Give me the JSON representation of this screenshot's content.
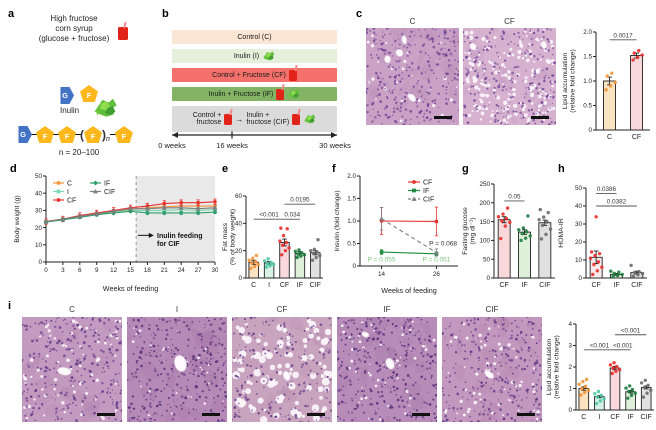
{
  "panel_a": {
    "label": "a",
    "hfcs_text": "High fructose\ncorn syrup\n(glucose + fructose)",
    "g": "G",
    "f": "F",
    "inulin": "Inulin",
    "chain_n": "n",
    "n_range": "n = 20–100"
  },
  "panel_b": {
    "label": "b",
    "rows": [
      {
        "text": "Control (C)",
        "color": "#FBE5D3"
      },
      {
        "text": "Inulin (I)",
        "color": "#E4F0DB"
      },
      {
        "text": "Control + Fructose (CF)",
        "color": "#F4716B"
      },
      {
        "text": "Inulin + Fructose (IF)",
        "color": "#83B465"
      },
      {
        "left": "Control +\nfructose",
        "arrow": "→",
        "right": "Inulin +\nfructose (CIF)",
        "color": "#DBDBDB"
      }
    ],
    "week0": "0 weeks",
    "week16": "16 weeks",
    "week30": "30 weeks"
  },
  "panel_c": {
    "label": "c"
  },
  "panel_d": {
    "label": "d"
  },
  "panel_e": {
    "label": "e"
  },
  "panel_f": {
    "label": "f"
  },
  "panel_g": {
    "label": "g"
  },
  "panel_h": {
    "label": "h"
  },
  "panel_i": {
    "label": "i"
  },
  "histology": [
    {
      "id": "c_C",
      "label": "C",
      "base": "#C9A2C5",
      "base2": "#B787B5",
      "nuclei": "#6C3F92",
      "n_count": 320,
      "vac_count": 28,
      "vac_r": [
        0.8,
        1.8
      ],
      "veins": 5,
      "vein_r": [
        2.5,
        5
      ],
      "seed": 11,
      "center_vein": false
    },
    {
      "id": "c_CF",
      "label": "CF",
      "base": "#D6B2D0",
      "base2": "#C193BD",
      "nuclei": "#6C3F92",
      "n_count": 260,
      "vac_count": 170,
      "vac_r": [
        0.9,
        2.2
      ],
      "veins": 3,
      "vein_r": [
        2.5,
        5
      ],
      "seed": 22,
      "center_vein": false
    },
    {
      "id": "i_C",
      "label": "C",
      "base": "#C49BC0",
      "base2": "#AE7FAD",
      "nuclei": "#5E3585",
      "n_count": 300,
      "vac_count": 70,
      "vac_r": [
        0.8,
        1.8
      ],
      "veins": 1,
      "vein_r": [
        6,
        9
      ],
      "seed": 33,
      "center_vein": true
    },
    {
      "id": "i_I",
      "label": "I",
      "base": "#B58AB6",
      "base2": "#9E6F9F",
      "nuclei": "#542E7A",
      "n_count": 340,
      "vac_count": 30,
      "vac_r": [
        0.7,
        1.4
      ],
      "veins": 1,
      "vein_r": [
        7,
        10
      ],
      "seed": 44,
      "center_vein": true
    },
    {
      "id": "i_CF",
      "label": "CF",
      "base": "#C9A4BF",
      "base2": "#B287AC",
      "nuclei": "#5E3585",
      "n_count": 220,
      "vac_count": 95,
      "vac_r": [
        1.5,
        4
      ],
      "veins": 1,
      "vein_r": [
        3,
        5
      ],
      "seed": 55,
      "center_vein": true
    },
    {
      "id": "i_IF",
      "label": "IF",
      "base": "#B78CB8",
      "base2": "#A073A2",
      "nuclei": "#542E7A",
      "n_count": 320,
      "vac_count": 55,
      "vac_r": [
        0.7,
        1.5
      ],
      "veins": 2,
      "vein_r": [
        3,
        6
      ],
      "seed": 66,
      "center_vein": true
    },
    {
      "id": "i_CIF",
      "label": "CIF",
      "base": "#C398BE",
      "base2": "#AB7CA9",
      "nuclei": "#5E3585",
      "n_count": 300,
      "vac_count": 60,
      "vac_r": [
        0.8,
        1.8
      ],
      "veins": 1,
      "vein_r": [
        4,
        6
      ],
      "seed": 77,
      "center_vein": true
    }
  ],
  "chart_data": [
    {
      "id": "c_lipid",
      "type": "bar",
      "ylabel": "Lipid accumulation\n(relative fold change)",
      "categories": [
        "C",
        "CF"
      ],
      "values": [
        1.0,
        1.52
      ],
      "errors": [
        0.08,
        0.05
      ],
      "ylim": [
        0,
        2
      ],
      "yticks": [
        "0",
        "0.5",
        "1.0",
        "1.5",
        "2.0"
      ],
      "bar_fills": [
        "#FAE3C1",
        "#F9D8DC"
      ],
      "dot_colors": [
        "#F5953C",
        "#E8312E"
      ],
      "dots": [
        [
          0.82,
          0.9,
          0.97,
          1.1,
          1.16
        ],
        [
          1.43,
          1.48,
          1.53,
          1.57,
          1.62
        ]
      ],
      "sig": [
        {
          "a": 0,
          "b": 1,
          "y": 1.84,
          "label": "0.0017"
        }
      ],
      "margins": {
        "l": 36,
        "t": 20,
        "r": 4,
        "b": 24
      }
    },
    {
      "id": "d_weight",
      "type": "line",
      "xlabel": "Weeks of feeding",
      "ylabel": "Body weight (g)",
      "xlim": [
        0,
        30
      ],
      "xticks": [
        "0",
        "3",
        "6",
        "9",
        "12",
        "15",
        "18",
        "21",
        "24",
        "27",
        "30"
      ],
      "ylim": [
        0,
        50
      ],
      "yticks": [
        "0",
        "10",
        "20",
        "30",
        "40",
        "50"
      ],
      "shade": [
        16,
        30
      ],
      "vline": 16,
      "x": [
        0,
        3,
        6,
        9,
        12,
        15,
        18,
        21,
        24,
        27,
        30
      ],
      "series": [
        {
          "name": "C",
          "color": "#F5953C",
          "marker": "circle",
          "values": [
            23.5,
            25,
            26.5,
            28,
            29.5,
            30.5,
            31.5,
            32,
            32.5,
            32.5,
            32.5
          ],
          "err": 0.8
        },
        {
          "name": "I",
          "color": "#7DD9B5",
          "marker": "square",
          "values": [
            23.2,
            24.5,
            26,
            27.5,
            29,
            30,
            30,
            30,
            30.5,
            30,
            30.5
          ],
          "err": 0.7
        },
        {
          "name": "CF",
          "color": "#E8312E",
          "marker": "circle",
          "values": [
            23.5,
            25,
            27,
            28.5,
            30,
            31.5,
            32.5,
            34,
            34.5,
            34.5,
            35
          ],
          "err": 1.6
        },
        {
          "name": "IF",
          "color": "#2E9E6B",
          "marker": "diamond",
          "values": [
            23.3,
            24.5,
            26,
            27.5,
            28.5,
            29.5,
            28.5,
            28.5,
            28.5,
            28.5,
            29
          ],
          "err": 0.8
        },
        {
          "name": "CIF",
          "color": "#7F7F7F",
          "marker": "triangle",
          "values": [
            23.4,
            25,
            26.5,
            28,
            29.5,
            31,
            31,
            31.5,
            31.5,
            31,
            31.5
          ],
          "err": 0.9
        }
      ],
      "legend_cols": [
        [
          0,
          1,
          2
        ],
        [
          3,
          4
        ]
      ],
      "annotation": {
        "text_lines": [
          "Inulin feeding",
          "for CIF"
        ],
        "x": 19.0,
        "y": 15.5,
        "arrow_from_x": 16.3,
        "arrow_to_x": 18.6
      },
      "margins": {
        "l": 34,
        "t": 6,
        "r": 3,
        "b": 32
      }
    },
    {
      "id": "e_fat",
      "type": "bar",
      "ylabel": "Fat mass\n(% of body weight)",
      "categories": [
        "C",
        "I",
        "CF",
        "IF",
        "CIF"
      ],
      "values": [
        11.5,
        11,
        26,
        18,
        18.5
      ],
      "errors": [
        1.5,
        1,
        2.5,
        1.2,
        1.5
      ],
      "ylim": [
        0,
        60
      ],
      "yticks": [
        "0",
        "20",
        "40",
        "60"
      ],
      "bar_fills": [
        "#FAE3C1",
        "#D8F3E6",
        "#F9D8DC",
        "#DFF0DA",
        "#E0E0E0"
      ],
      "dot_colors": [
        "#F5953C",
        "#4FC9A4",
        "#E8312E",
        "#1D7F3F",
        "#6E6E6E"
      ],
      "dots": [
        [
          7,
          8.5,
          10,
          11,
          12,
          13,
          14.5,
          16.5
        ],
        [
          8,
          9,
          10,
          10.5,
          11.5,
          12.5,
          14
        ],
        [
          17,
          20,
          22,
          24,
          26,
          27,
          31,
          36,
          36.5
        ],
        [
          15,
          16,
          17,
          17.5,
          18.5,
          19.5,
          20.5
        ],
        [
          13,
          15,
          16.5,
          18,
          19,
          20,
          21,
          28
        ]
      ],
      "sig": [
        {
          "a": 0,
          "b": 2,
          "y": 43,
          "label": "<0.001"
        },
        {
          "a": 2,
          "b": 3,
          "y": 43,
          "label": "0.034"
        },
        {
          "a": 2,
          "b": 4,
          "y": 54,
          "label": "0.0195"
        }
      ],
      "margins": {
        "l": 26,
        "t": 26,
        "r": 4,
        "b": 16
      }
    },
    {
      "id": "f_insulin",
      "type": "line",
      "xlabel": "Weeks of feeding",
      "ylabel": "Insulin (fold change)",
      "xlim": [
        0,
        1
      ],
      "xtick_pos": [
        0.22,
        0.78
      ],
      "xtick_labels": [
        "14",
        "26"
      ],
      "ylim": [
        0,
        2
      ],
      "yticks": [
        "0",
        "0.5",
        "1.0",
        "1.5",
        "2.0"
      ],
      "series": [
        {
          "name": "CF",
          "color": "#E8312E",
          "marker": "circle",
          "x": [
            0.22,
            0.78
          ],
          "values": [
            1.0,
            0.99
          ],
          "errs": [
            0.3,
            0.32
          ]
        },
        {
          "name": "IF",
          "color": "#1D8A3C",
          "marker": "square",
          "x": [
            0.22,
            0.78
          ],
          "values": [
            0.31,
            0.27
          ],
          "errs": [
            0.05,
            0.04
          ]
        },
        {
          "name": "CIF",
          "color": "#7F7F7F",
          "marker": "triangle",
          "dash": true,
          "x": [
            0.22,
            0.78
          ],
          "values": [
            1.05,
            0.3
          ],
          "errs": [
            0.25,
            0.08
          ]
        }
      ],
      "annotations": [
        {
          "x": 0.99,
          "y": 0.46,
          "text": "P = 0.068",
          "color": "#333333",
          "anchor": "end"
        },
        {
          "x": 0.22,
          "y": 0.1,
          "text": "P = 0.055",
          "color": "#7CC57C",
          "anchor": "middle"
        },
        {
          "x": 0.78,
          "y": 0.1,
          "text": "P = 0.051",
          "color": "#7CC57C",
          "anchor": "middle"
        }
      ],
      "legend": "tr",
      "margins": {
        "l": 28,
        "t": 6,
        "r": 2,
        "b": 30
      }
    },
    {
      "id": "g_glucose",
      "type": "bar",
      "ylabel": "Fasting glucose\n(mg dl⁻¹)",
      "categories": [
        "CF",
        "IF",
        "CIF"
      ],
      "values": [
        155,
        122,
        147
      ],
      "errors": [
        8,
        6,
        7
      ],
      "ylim": [
        0,
        250
      ],
      "yticks": [
        "0",
        "50",
        "100",
        "150",
        "200",
        "250"
      ],
      "bar_fills": [
        "#F9D8DC",
        "#DFF0DA",
        "#E0E0E0"
      ],
      "dot_colors": [
        "#E8312E",
        "#1D7F3F",
        "#6E6E6E"
      ],
      "dots": [
        [
          105,
          138,
          148,
          152,
          158,
          163,
          170,
          186
        ],
        [
          100,
          106,
          112,
          118,
          123,
          128,
          133,
          165
        ],
        [
          104,
          116,
          130,
          140,
          149,
          155,
          162,
          174,
          182
        ]
      ],
      "sig": [
        {
          "a": 0,
          "b": 1,
          "y": 205,
          "label": "0.05"
        }
      ],
      "margins": {
        "l": 34,
        "t": 14,
        "r": 2,
        "b": 16
      }
    },
    {
      "id": "h_homa",
      "type": "bar",
      "ylabel": "HOMA-IR",
      "categories": [
        "CF",
        "IF",
        "CIF"
      ],
      "values": [
        11.5,
        2,
        3
      ],
      "errors": [
        3.5,
        0.5,
        0.8
      ],
      "ylim": [
        0,
        50
      ],
      "yticks": [
        "0",
        "10",
        "20",
        "30",
        "40",
        "50"
      ],
      "bar_fills": [
        "#FBEAEA",
        "#DFF0DA",
        "#E0E0E0"
      ],
      "dot_colors": [
        "#E8312E",
        "#1D7F3F",
        "#6E6E6E"
      ],
      "dots": [
        [
          2,
          4,
          6,
          7.5,
          9,
          11,
          12.5,
          13.5,
          14.5,
          34
        ],
        [
          0.8,
          1.4,
          2,
          2.6,
          3.2,
          3.8
        ],
        [
          1,
          1.8,
          2.5,
          3,
          3.6,
          7
        ]
      ],
      "sig": [
        {
          "a": 0,
          "b": 1,
          "y": 47,
          "label": "0.0386"
        },
        {
          "a": 0,
          "b": 2,
          "y": 40,
          "label": "0.0382"
        }
      ],
      "margins": {
        "l": 30,
        "t": 18,
        "r": 8,
        "b": 16
      }
    },
    {
      "id": "i_lipid",
      "type": "bar",
      "ylabel": "Lipid accumulation\n(relative fold change)",
      "categories": [
        "C",
        "I",
        "CF",
        "IF",
        "CIF"
      ],
      "values": [
        1.0,
        0.62,
        1.95,
        0.85,
        1.05
      ],
      "errors": [
        0.08,
        0.05,
        0.08,
        0.06,
        0.07
      ],
      "ylim": [
        0,
        4
      ],
      "yticks": [
        "0",
        "1",
        "2",
        "3",
        "4"
      ],
      "bar_fills": [
        "#FAE3C1",
        "#D8F3E6",
        "#F9D8DC",
        "#DFF0DA",
        "#E0E0E0"
      ],
      "dot_colors": [
        "#F5953C",
        "#4FC9A4",
        "#E8312E",
        "#1D7F3F",
        "#6E6E6E"
      ],
      "dots": [
        [
          0.7,
          0.82,
          0.92,
          1.0,
          1.1,
          1.2,
          1.32,
          1.42
        ],
        [
          0.3,
          0.42,
          0.52,
          0.6,
          0.68,
          0.76,
          0.86
        ],
        [
          1.7,
          1.8,
          1.88,
          1.95,
          2.02,
          2.1,
          2.2
        ],
        [
          0.55,
          0.68,
          0.78,
          0.86,
          0.95,
          1.02,
          1.12
        ],
        [
          0.6,
          0.78,
          0.92,
          1.05,
          1.15,
          1.26,
          1.38
        ]
      ],
      "sig": [
        {
          "a": 0,
          "b": 2,
          "y": 2.8,
          "label": "<0.001"
        },
        {
          "a": 2,
          "b": 3,
          "y": 2.8,
          "label": "<0.001"
        },
        {
          "a": 2,
          "b": 4,
          "y": 3.5,
          "label": "<0.001"
        }
      ],
      "margins": {
        "l": 32,
        "t": 18,
        "r": 2,
        "b": 16
      }
    }
  ]
}
